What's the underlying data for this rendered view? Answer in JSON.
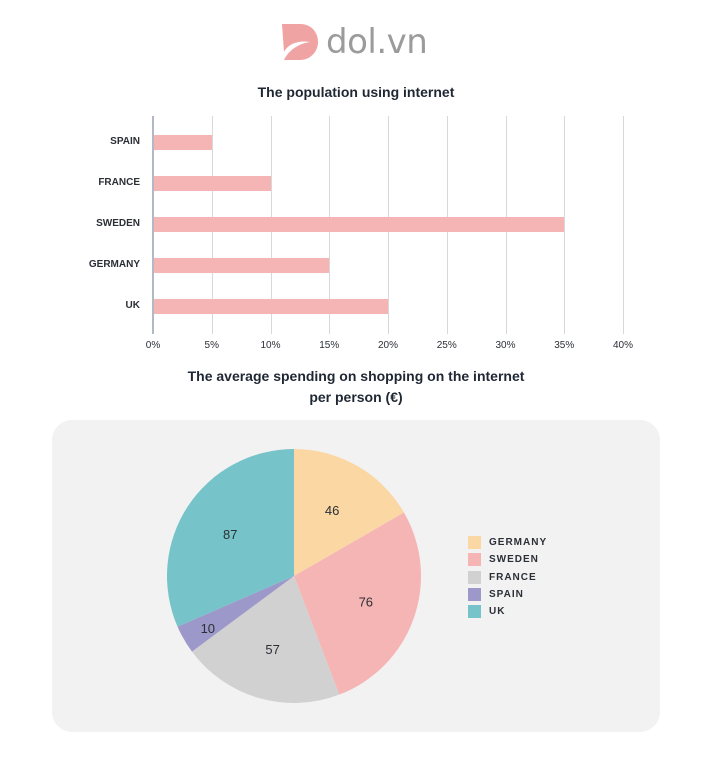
{
  "brand": {
    "name": "dol.vn",
    "logo_color": "#f0a3a3",
    "text_color": "#9b9b9b"
  },
  "chart_data": [
    {
      "type": "bar",
      "orientation": "horizontal",
      "title": "The population using internet",
      "categories": [
        "SPAIN",
        "FRANCE",
        "SWEDEN",
        "GERMANY",
        "UK"
      ],
      "values": [
        5,
        10,
        35,
        15,
        20
      ],
      "unit": "%",
      "xlabel": "",
      "ylabel": "",
      "xlim": [
        0,
        40
      ],
      "x_ticks": [
        "0%",
        "5%",
        "10%",
        "15%",
        "20%",
        "25%",
        "30%",
        "35%",
        "40%"
      ],
      "grid": true,
      "bar_color": "#f6b5b5"
    },
    {
      "type": "pie",
      "title": "The average spending on shopping on the internet per person (€)",
      "title_lines": [
        "The average spending on shopping on the internet",
        "per person (€)"
      ],
      "categories": [
        "GERMANY",
        "SWEDEN",
        "FRANCE",
        "SPAIN",
        "UK"
      ],
      "values": [
        46,
        76,
        57,
        10,
        87
      ],
      "colors": [
        "#fbd7a4",
        "#f6b5b5",
        "#d1d1d1",
        "#9c98c9",
        "#76c4c9"
      ],
      "legend_position": "right"
    }
  ]
}
